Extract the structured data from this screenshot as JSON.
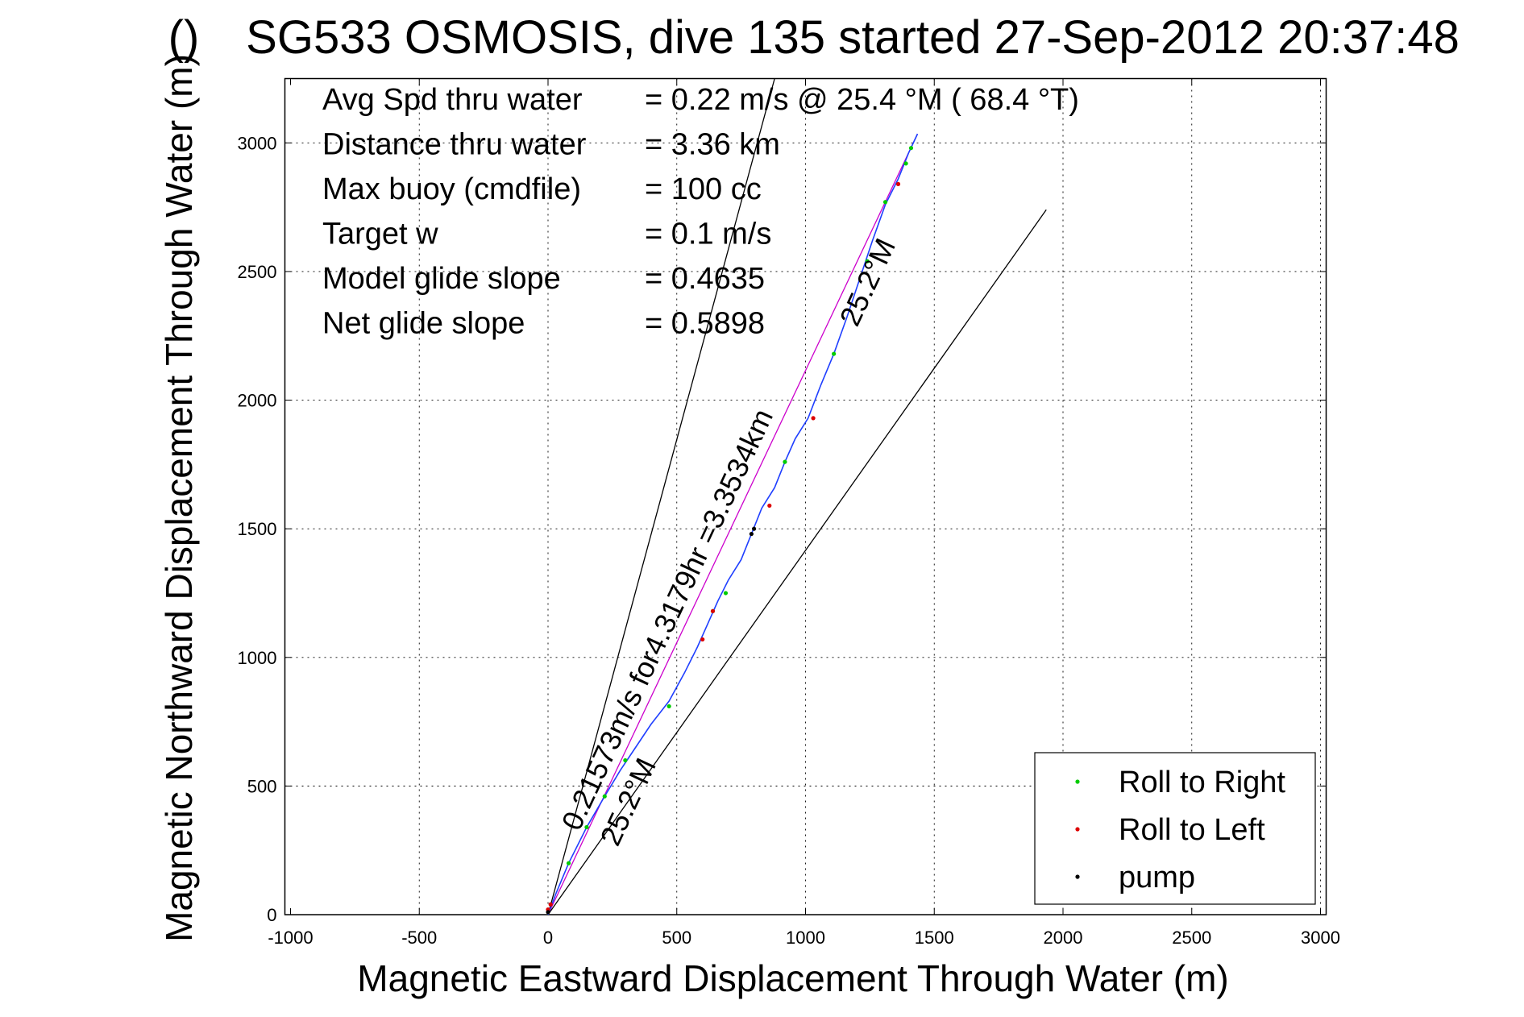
{
  "chart_data": {
    "type": "line",
    "title": "SG533 OSMOSIS, dive 135 started 27-Sep-2012 20:37:48",
    "title_overlap_glyph": "()",
    "xlabel": "Magnetic Eastward Displacement Through Water (m)",
    "ylabel": "Magnetic Northward Displacement Through Water (m)",
    "xlim": [
      -1000,
      3000
    ],
    "ylim": [
      0,
      3250
    ],
    "xticks": [
      -1000,
      -500,
      0,
      500,
      1000,
      1500,
      2000,
      2500,
      3000
    ],
    "yticks": [
      0,
      500,
      1000,
      1500,
      2000,
      2500,
      3000
    ],
    "xtick_labels": [
      "-1000",
      "-500",
      "0",
      "500",
      "1000",
      "1500",
      "2000",
      "2500",
      "3000"
    ],
    "ytick_labels": [
      "0",
      "500",
      "1000",
      "1500",
      "2000",
      "2500",
      "3000"
    ],
    "grid": true,
    "stats": [
      {
        "label": "Avg Spd thru water",
        "value": "=  0.22 m/s @  25.4 °M ( 68.4 °T)"
      },
      {
        "label": "Distance thru water",
        "value": "=  3.36 km"
      },
      {
        "label": "Max buoy (cmdfile)",
        "value": "= 100 cc"
      },
      {
        "label": "Target w",
        "value": "= 0.1 m/s"
      },
      {
        "label": "Model glide slope",
        "value": "= 0.4635"
      },
      {
        "label": "Net glide slope",
        "value": "= 0.5898"
      }
    ],
    "annotations": [
      {
        "text": "0.21573m/s for4.3179hr =3.3534km",
        "x": 120,
        "y": 320,
        "angle_deg": 65
      },
      {
        "text": "25.2°M",
        "x": 270,
        "y": 260,
        "angle_deg": 65
      },
      {
        "text": "25.2°M",
        "x": 1200,
        "y": 2280,
        "angle_deg": 65
      }
    ],
    "reference_lines": [
      {
        "name": "net-heading-line",
        "x": [
          0,
          1435
        ],
        "y": [
          0,
          3035
        ],
        "color": "#cc00cc"
      },
      {
        "name": "cone-left-line",
        "x": [
          0,
          880
        ],
        "y": [
          0,
          3250
        ],
        "color": "#000000"
      },
      {
        "name": "cone-right-line",
        "x": [
          0,
          1935
        ],
        "y": [
          0,
          2740
        ],
        "color": "#000000"
      }
    ],
    "series": [
      {
        "name": "track",
        "color": "#1f3fff",
        "x": [
          0,
          30,
          80,
          150,
          220,
          280,
          340,
          400,
          470,
          530,
          580,
          620,
          660,
          700,
          750,
          790,
          830,
          880,
          920,
          960,
          1010,
          1060,
          1110,
          1160,
          1210,
          1260,
          1310,
          1360,
          1400,
          1435
        ],
        "y": [
          0,
          80,
          200,
          340,
          460,
          560,
          650,
          740,
          830,
          940,
          1040,
          1130,
          1220,
          1300,
          1380,
          1480,
          1580,
          1660,
          1760,
          1850,
          1930,
          2060,
          2180,
          2320,
          2470,
          2620,
          2760,
          2860,
          2960,
          3035
        ]
      },
      {
        "name": "Roll to Right",
        "color": "#00cc00",
        "x": [
          80,
          150,
          220,
          300,
          470,
          640,
          690,
          920,
          1110,
          1240,
          1310,
          1390,
          1410
        ],
        "y": [
          200,
          340,
          460,
          600,
          810,
          1180,
          1250,
          1760,
          2180,
          2540,
          2770,
          2920,
          2980
        ]
      },
      {
        "name": "Roll to Left",
        "color": "#dd0000",
        "x": [
          0,
          10,
          600,
          640,
          860,
          1030,
          1360
        ],
        "y": [
          20,
          40,
          1070,
          1180,
          1590,
          1930,
          2840
        ]
      },
      {
        "name": "pump",
        "color": "#000000",
        "x": [
          0,
          790,
          800
        ],
        "y": [
          10,
          1480,
          1500
        ]
      }
    ],
    "legend": {
      "location": "bottom-right",
      "entries": [
        {
          "label": "Roll to Right",
          "color": "#00cc00"
        },
        {
          "label": "Roll to Left",
          "color": "#dd0000"
        },
        {
          "label": "pump",
          "color": "#000000"
        }
      ]
    }
  }
}
